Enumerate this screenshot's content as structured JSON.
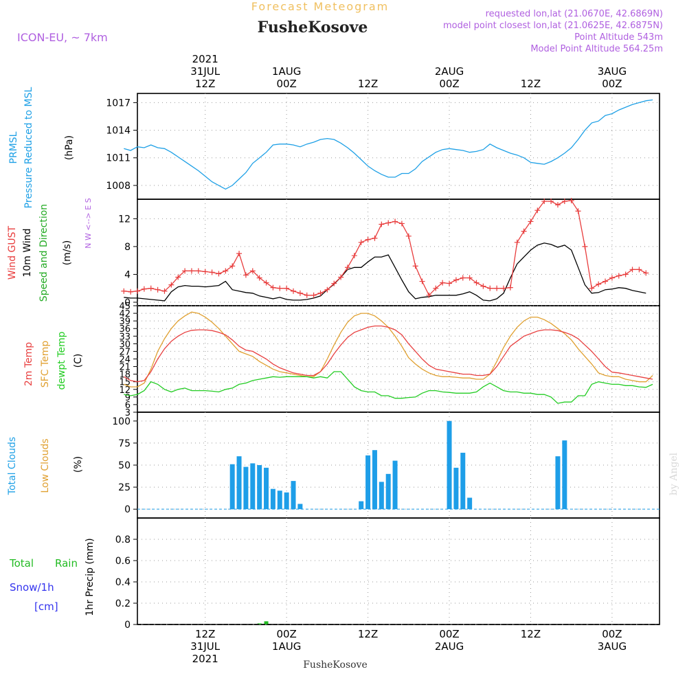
{
  "header": {
    "title": "Forecast Meteogram",
    "location": "FusheKosove",
    "model": "ICON-EU, ~ 7km",
    "requested": "requested lon,lat (21.0670E, 42.6869N)",
    "closest": "model point closest lon,lat (21.0625E, 42.6875N)",
    "altitude": "Point Altitude 543m",
    "model_altitude": "Model Point Altitude 564.25m",
    "footer_location": "FusheKosove",
    "watermark": "by Angel"
  },
  "time_axis": {
    "top_ticks": [
      {
        "hour": 12,
        "lines": [
          "2021",
          "31JUL",
          "12Z"
        ]
      },
      {
        "hour": 24,
        "lines": [
          "1AUG",
          "00Z"
        ]
      },
      {
        "hour": 36,
        "lines": [
          "12Z"
        ]
      },
      {
        "hour": 48,
        "lines": [
          "2AUG",
          "00Z"
        ]
      },
      {
        "hour": 60,
        "lines": [
          "12Z"
        ]
      },
      {
        "hour": 72,
        "lines": [
          "3AUG",
          "00Z"
        ]
      }
    ],
    "bottom_ticks": [
      {
        "hour": 12,
        "lines": [
          "12Z",
          "31JUL",
          "2021"
        ]
      },
      {
        "hour": 24,
        "lines": [
          "00Z",
          "1AUG"
        ]
      },
      {
        "hour": 36,
        "lines": [
          "12Z"
        ]
      },
      {
        "hour": 48,
        "lines": [
          "00Z",
          "2AUG"
        ]
      },
      {
        "hour": 60,
        "lines": [
          "12Z"
        ]
      },
      {
        "hour": 72,
        "lines": [
          "00Z",
          "3AUG"
        ]
      }
    ]
  },
  "panel_labels": {
    "pressure": {
      "name": "PRMSL",
      "desc": "Pressure Reduced to MSL",
      "unit": "(hPa)"
    },
    "wind": {
      "gust": "Wind GUST",
      "wind10m": "10m Wind",
      "dir": "Speed and Direction",
      "unit": "(m/s)",
      "compass": "N W <--> E S"
    },
    "temp": {
      "t2m": "2m Temp",
      "sfc": "SFC Temp",
      "dewpt": "dewpt Temp",
      "unit": "(C)"
    },
    "cloud": {
      "total": "Total Clouds",
      "low": "Low Clouds",
      "unit": "(%)"
    },
    "precip": {
      "rain_a": "Total",
      "rain_b": "Rain",
      "snow": "Snow/1h",
      "snow_unit": "[cm]",
      "label": "1hr Precip (mm)"
    }
  },
  "colors": {
    "pressure": "#1ea0e6",
    "gust": "#e83c3c",
    "wind10m": "#000000",
    "t2m": "#e84040",
    "sfc": "#e0a030",
    "dewpt": "#22cc22",
    "cloud_total": "#1e9ee8",
    "cloud_low": "#e0a030",
    "rain": "#22bb22",
    "snow": "#3333ee",
    "purple": "#b060e0",
    "title_orange": "#f0c060"
  },
  "chart_data": [
    {
      "type": "line",
      "id": "pressure",
      "ylabel": "(hPa)",
      "x_hours": [
        0,
        1,
        2,
        3,
        4,
        5,
        6,
        7,
        8,
        9,
        10,
        11,
        12,
        13,
        14,
        15,
        16,
        17,
        18,
        19,
        20,
        21,
        22,
        23,
        24,
        25,
        26,
        27,
        28,
        29,
        30,
        31,
        32,
        33,
        34,
        35,
        36,
        37,
        38,
        39,
        40,
        41,
        42,
        43,
        44,
        45,
        46,
        47,
        48,
        49,
        50,
        51,
        52,
        53,
        54,
        55,
        56,
        57,
        58,
        59,
        60,
        61,
        62,
        63,
        64,
        65,
        66,
        67,
        68,
        69,
        70,
        71,
        72,
        73,
        74,
        75,
        76,
        77,
        78
      ],
      "series": [
        {
          "values": [
            1012.0,
            1011.8,
            1012.2,
            1012.1,
            1012.4,
            1012.1,
            1012.0,
            1011.6,
            1011.1,
            1010.6,
            1010.1,
            1009.6,
            1009.0,
            1008.4,
            1008.0,
            1007.6,
            1008.0,
            1008.7,
            1009.4,
            1010.4,
            1011.0,
            1011.6,
            1012.4,
            1012.5,
            1012.5,
            1012.4,
            1012.2,
            1012.5,
            1012.7,
            1013.0,
            1013.1,
            1013.0,
            1012.6,
            1012.1,
            1011.5,
            1010.8,
            1010.1,
            1009.6,
            1009.2,
            1008.9,
            1008.9,
            1009.3,
            1009.3,
            1009.8,
            1010.6,
            1011.1,
            1011.6,
            1011.9,
            1012.0,
            1011.9,
            1011.8,
            1011.6,
            1011.7,
            1011.9,
            1012.5,
            1012.1,
            1011.8,
            1011.5,
            1011.3,
            1011.0,
            1010.5,
            1010.4,
            1010.3,
            1010.6,
            1011.0,
            1011.5,
            1012.1,
            1013.0,
            1014.0,
            1014.8,
            1015.0,
            1015.6,
            1015.8,
            1016.2,
            1016.5,
            1016.8,
            1017.0,
            1017.2,
            1017.3
          ]
        }
      ],
      "yticks": [
        1008,
        1011,
        1014,
        1017
      ],
      "ylim": [
        1006.5,
        1018.0
      ]
    },
    {
      "type": "line",
      "id": "wind",
      "ylabel": "(m/s)",
      "x_hours": [
        0,
        1,
        2,
        3,
        4,
        5,
        6,
        7,
        8,
        9,
        10,
        11,
        12,
        13,
        14,
        15,
        16,
        17,
        18,
        19,
        20,
        21,
        22,
        23,
        24,
        25,
        26,
        27,
        28,
        29,
        30,
        31,
        32,
        33,
        34,
        35,
        36,
        37,
        38,
        39,
        40,
        41,
        42,
        43,
        44,
        45,
        46,
        47,
        48,
        49,
        50,
        51,
        52,
        53,
        54,
        55,
        56,
        57,
        58,
        59,
        60,
        61,
        62,
        63,
        64,
        65,
        66,
        67,
        68,
        69,
        70,
        71,
        72,
        73,
        74,
        75,
        76,
        77
      ],
      "series": [
        {
          "name": "Wind GUST",
          "values": [
            1.6,
            1.5,
            1.6,
            1.9,
            2.0,
            1.8,
            1.6,
            2.5,
            3.6,
            4.5,
            4.5,
            4.5,
            4.4,
            4.3,
            4.1,
            4.5,
            5.2,
            7.0,
            3.9,
            4.5,
            3.5,
            2.8,
            2.1,
            2.0,
            2.0,
            1.6,
            1.3,
            1.0,
            1.0,
            1.3,
            1.8,
            2.7,
            3.6,
            5.0,
            6.7,
            8.6,
            9.0,
            9.2,
            11.2,
            11.4,
            11.6,
            11.3,
            9.5,
            5.2,
            3.0,
            1.0,
            2.0,
            2.8,
            2.7,
            3.2,
            3.5,
            3.5,
            2.8,
            2.3,
            2.0,
            2.0,
            2.0,
            2.1,
            8.6,
            10.2,
            11.6,
            13.2,
            14.5,
            14.5,
            14.0,
            14.5,
            14.6,
            13.1,
            8.0,
            2.0,
            2.6,
            3.0,
            3.5,
            3.8,
            4.0,
            4.7,
            4.7,
            4.2
          ]
        },
        {
          "name": "10m Wind",
          "values": [
            0.7,
            0.6,
            0.6,
            0.5,
            0.4,
            0.3,
            0.2,
            1.5,
            2.2,
            2.4,
            2.3,
            2.3,
            2.2,
            2.3,
            2.4,
            3.0,
            1.8,
            1.6,
            1.4,
            1.3,
            0.9,
            0.7,
            0.5,
            0.7,
            0.4,
            0.3,
            0.3,
            0.4,
            0.6,
            0.9,
            1.8,
            2.6,
            3.6,
            4.7,
            5.0,
            5.0,
            5.8,
            6.5,
            6.5,
            6.8,
            5.0,
            3.2,
            1.5,
            0.5,
            0.7,
            0.8,
            1.0,
            1.0,
            1.0,
            1.0,
            1.2,
            1.5,
            1.0,
            0.3,
            0.2,
            0.5,
            1.3,
            3.5,
            5.5,
            6.5,
            7.5,
            8.2,
            8.5,
            8.3,
            7.9,
            8.2,
            7.5,
            5.0,
            2.5,
            1.3,
            1.4,
            1.8,
            1.9,
            2.1,
            2.0,
            1.7,
            1.5,
            1.3
          ]
        }
      ],
      "yticks": [
        0,
        4,
        8,
        12
      ],
      "ylim": [
        -0.5,
        14.8
      ]
    },
    {
      "type": "line",
      "id": "temperature",
      "ylabel": "(C)",
      "x_hours": [
        0,
        1,
        2,
        3,
        4,
        5,
        6,
        7,
        8,
        9,
        10,
        11,
        12,
        13,
        14,
        15,
        16,
        17,
        18,
        19,
        20,
        21,
        22,
        23,
        24,
        25,
        26,
        27,
        28,
        29,
        30,
        31,
        32,
        33,
        34,
        35,
        36,
        37,
        38,
        39,
        40,
        41,
        42,
        43,
        44,
        45,
        46,
        47,
        48,
        49,
        50,
        51,
        52,
        53,
        54,
        55,
        56,
        57,
        58,
        59,
        60,
        61,
        62,
        63,
        64,
        65,
        66,
        67,
        68,
        69,
        70,
        71,
        72,
        73,
        74,
        75,
        76,
        77,
        78
      ],
      "series": [
        {
          "name": "2m Temp",
          "values": [
            17,
            15.5,
            15,
            15.5,
            19,
            24,
            28,
            31,
            33,
            34.5,
            35.3,
            35.5,
            35.5,
            35.2,
            34.5,
            33.5,
            31.5,
            29,
            27.5,
            27,
            25.5,
            24,
            22,
            20.5,
            19.5,
            18.5,
            18,
            17.5,
            17.5,
            19,
            22,
            26,
            29.5,
            32.5,
            34.5,
            35.5,
            36.5,
            37,
            37,
            36.5,
            35.5,
            33.5,
            30,
            27,
            24,
            21.5,
            20,
            19.5,
            19,
            18.5,
            18,
            18,
            17.5,
            17.5,
            18,
            21,
            25,
            29,
            31,
            33,
            34,
            35,
            35.5,
            35.5,
            35.2,
            34.5,
            33.5,
            32,
            29.5,
            27,
            24,
            21,
            18.8,
            18.5,
            18,
            17.5,
            17,
            16.5,
            16
          ]
        },
        {
          "name": "SFC Temp",
          "values": [
            14,
            13,
            13,
            14.5,
            20,
            27,
            32,
            36,
            39,
            41,
            42.5,
            42,
            40.5,
            38.5,
            36,
            33,
            30,
            27,
            26,
            25,
            23,
            21.5,
            20,
            19,
            18.5,
            18,
            17.5,
            17,
            17,
            19,
            24,
            29.5,
            34.5,
            38.5,
            41,
            42,
            42,
            41,
            39,
            36.5,
            33,
            29,
            24.5,
            22,
            20,
            18.5,
            17.5,
            17,
            17,
            16.8,
            16.5,
            16.5,
            16,
            16,
            18,
            23,
            28.5,
            33,
            36.5,
            39,
            40.5,
            40.5,
            39.5,
            38,
            36,
            34,
            31.5,
            28,
            25,
            22,
            18.5,
            17.5,
            17,
            17,
            16,
            15.5,
            15,
            15,
            17.5
          ]
        },
        {
          "name": "dewpt Temp",
          "values": [
            10,
            9.5,
            10,
            11.5,
            15,
            14,
            12,
            11,
            12,
            12.5,
            11.5,
            11.5,
            11.5,
            11.3,
            11,
            12,
            12.5,
            14,
            14.5,
            15.5,
            16,
            16.5,
            17,
            16.8,
            17,
            17,
            17,
            17,
            16.5,
            17,
            16.5,
            19,
            19,
            16,
            13,
            11.5,
            11,
            11,
            9.5,
            9.5,
            8.5,
            8.5,
            8.8,
            9.0,
            10.5,
            11.5,
            11.5,
            11,
            10.8,
            10.5,
            10.5,
            10.5,
            11,
            13,
            14.5,
            13,
            11.5,
            11.0,
            11.0,
            10.5,
            10.5,
            10,
            10,
            9.0,
            6.5,
            7,
            7,
            9.5,
            9.5,
            14,
            15,
            14.5,
            14,
            14,
            13.5,
            13.5,
            13,
            12.8,
            14
          ]
        }
      ],
      "yticks": [
        3,
        6,
        9,
        12,
        15,
        18,
        21,
        24,
        27,
        30,
        33,
        36,
        39,
        42,
        45
      ],
      "ylim": [
        3,
        45
      ]
    },
    {
      "type": "bar",
      "id": "clouds",
      "ylabel": "(%)",
      "series": [
        {
          "name": "Total Clouds",
          "bars": [
            {
              "hour": 16,
              "value": 51
            },
            {
              "hour": 17,
              "value": 60
            },
            {
              "hour": 18,
              "value": 48
            },
            {
              "hour": 19,
              "value": 52
            },
            {
              "hour": 20,
              "value": 50
            },
            {
              "hour": 21,
              "value": 47
            },
            {
              "hour": 22,
              "value": 23
            },
            {
              "hour": 23,
              "value": 21
            },
            {
              "hour": 24,
              "value": 19
            },
            {
              "hour": 25,
              "value": 32
            },
            {
              "hour": 26,
              "value": 6
            },
            {
              "hour": 35,
              "value": 9
            },
            {
              "hour": 36,
              "value": 61
            },
            {
              "hour": 37,
              "value": 67
            },
            {
              "hour": 38,
              "value": 31
            },
            {
              "hour": 39,
              "value": 40
            },
            {
              "hour": 40,
              "value": 55
            },
            {
              "hour": 48,
              "value": 100
            },
            {
              "hour": 49,
              "value": 47
            },
            {
              "hour": 50,
              "value": 64
            },
            {
              "hour": 51,
              "value": 13
            },
            {
              "hour": 64,
              "value": 60
            },
            {
              "hour": 65,
              "value": 78
            }
          ]
        },
        {
          "name": "Low Clouds",
          "bars": []
        }
      ],
      "yticks": [
        0,
        25,
        50,
        75,
        100
      ],
      "ylim": [
        -10,
        110
      ]
    },
    {
      "type": "bar",
      "id": "precip",
      "ylabel": "1hr Precip (mm)",
      "series": [
        {
          "name": "Total Rain",
          "bars": [
            {
              "hour": 20,
              "value": 0.01
            },
            {
              "hour": 21,
              "value": 0.03
            }
          ]
        },
        {
          "name": "Snow/1h",
          "bars": []
        }
      ],
      "yticks": [
        0,
        0.2,
        0.4,
        0.6,
        0.8
      ],
      "ylim": [
        0,
        1.0
      ]
    }
  ]
}
